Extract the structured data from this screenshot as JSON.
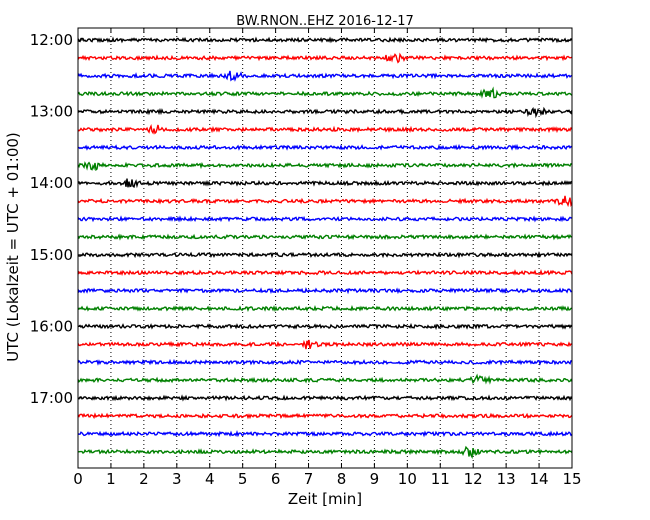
{
  "chart_data": {
    "type": "line",
    "title": "BW.RNON..EHZ 2016-12-17",
    "xlabel": "Zeit  [min]",
    "ylabel": "UTC (Lokalzeit = UTC + 01:00)",
    "xlim": [
      0,
      15
    ],
    "x_ticks": [
      "0",
      "1",
      "2",
      "3",
      "4",
      "5",
      "6",
      "7",
      "8",
      "9",
      "10",
      "11",
      "12",
      "13",
      "14",
      "15"
    ],
    "y_tick_labels": [
      "12:00",
      "13:00",
      "14:00",
      "15:00",
      "16:00",
      "17:00"
    ],
    "grid": "vertical dotted at each minute",
    "trace_colors": [
      "#000000",
      "#ff0000",
      "#0000ff",
      "#008000"
    ],
    "traces": [
      {
        "start": "12:00",
        "color": "#000000",
        "events": []
      },
      {
        "start": "12:15",
        "color": "#ff0000",
        "events": [
          9.6
        ]
      },
      {
        "start": "12:30",
        "color": "#0000ff",
        "events": [
          4.7
        ]
      },
      {
        "start": "12:45",
        "color": "#008000",
        "events": [
          12.5
        ]
      },
      {
        "start": "13:00",
        "color": "#000000",
        "events": [
          13.9
        ]
      },
      {
        "start": "13:15",
        "color": "#ff0000",
        "events": [
          2.4
        ]
      },
      {
        "start": "13:30",
        "color": "#0000ff",
        "events": []
      },
      {
        "start": "13:45",
        "color": "#008000",
        "events": [
          0.5
        ]
      },
      {
        "start": "14:00",
        "color": "#000000",
        "events": [
          1.6
        ]
      },
      {
        "start": "14:15",
        "color": "#ff0000",
        "events": [
          14.8
        ]
      },
      {
        "start": "14:30",
        "color": "#0000ff",
        "events": []
      },
      {
        "start": "14:45",
        "color": "#008000",
        "events": []
      },
      {
        "start": "15:00",
        "color": "#000000",
        "events": []
      },
      {
        "start": "15:15",
        "color": "#ff0000",
        "events": []
      },
      {
        "start": "15:30",
        "color": "#0000ff",
        "events": []
      },
      {
        "start": "15:45",
        "color": "#008000",
        "events": []
      },
      {
        "start": "16:00",
        "color": "#000000",
        "events": []
      },
      {
        "start": "16:15",
        "color": "#ff0000",
        "events": [
          7.0
        ]
      },
      {
        "start": "16:30",
        "color": "#0000ff",
        "events": []
      },
      {
        "start": "16:45",
        "color": "#008000",
        "events": [
          12.2
        ]
      },
      {
        "start": "17:00",
        "color": "#000000",
        "events": []
      },
      {
        "start": "17:15",
        "color": "#ff0000",
        "events": []
      },
      {
        "start": "17:30",
        "color": "#0000ff",
        "events": []
      },
      {
        "start": "17:45",
        "color": "#008000",
        "events": [
          11.9
        ]
      }
    ]
  }
}
